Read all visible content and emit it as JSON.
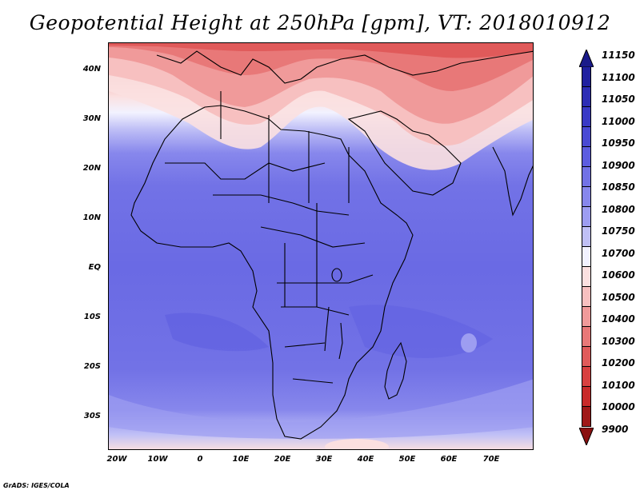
{
  "title": "Geopotential Height at 250hPa [gpm], VT: 2018010912",
  "footer": "GrADS: IGES/COLA",
  "map": {
    "lat_labels": [
      "40N",
      "30N",
      "20N",
      "10N",
      "EQ",
      "10S",
      "20S",
      "30S"
    ],
    "lon_labels": [
      "20W",
      "10W",
      "0",
      "10E",
      "20E",
      "30E",
      "40E",
      "50E",
      "60E",
      "70E"
    ]
  },
  "colorbar": {
    "labels": [
      "11150",
      "11100",
      "11050",
      "11000",
      "10950",
      "10900",
      "10850",
      "10800",
      "10750",
      "10700",
      "10600",
      "10500",
      "10400",
      "10300",
      "10200",
      "10100",
      "10000",
      "9900"
    ],
    "colors": [
      "#2020a0",
      "#2d2db5",
      "#3a3ac6",
      "#4a4ad4",
      "#5d5de0",
      "#7272e6",
      "#8787ec",
      "#9d9df1",
      "#c0c0f6",
      "#f2f2ff",
      "#fbe0e0",
      "#f7c0c0",
      "#f09a9a",
      "#e87878",
      "#e05a5a",
      "#d84040",
      "#c82a2a",
      "#a01818"
    ],
    "top_arrow_color": "#1a1a8a",
    "bottom_arrow_color": "#8a1010"
  }
}
